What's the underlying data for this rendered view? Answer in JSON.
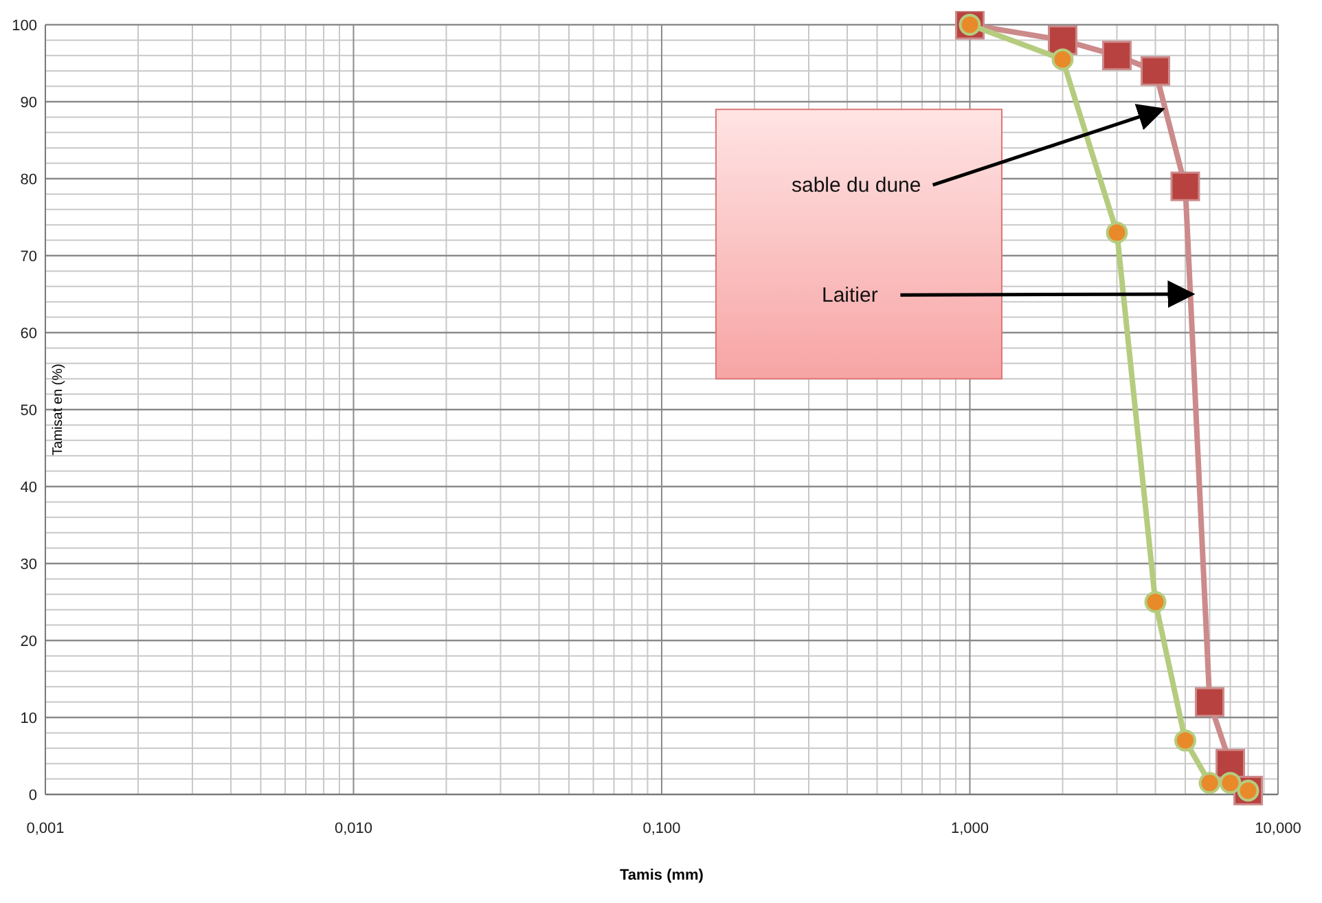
{
  "chart_data": {
    "type": "line",
    "xlabel": "Tamis (mm)",
    "ylabel": "Tamisat en (%)",
    "log": "x",
    "xlim": [
      0.001,
      10
    ],
    "xticks": [
      {
        "value": 0.001,
        "label": "0,001"
      },
      {
        "value": 0.01,
        "label": "0,010"
      },
      {
        "value": 0.1,
        "label": "0,100"
      },
      {
        "value": 1,
        "label": "1,000"
      },
      {
        "value": 10,
        "label": "10,000"
      }
    ],
    "ylim": [
      0,
      100
    ],
    "yticks": [
      0,
      10,
      20,
      30,
      40,
      50,
      60,
      70,
      80,
      90,
      100
    ],
    "grid": true,
    "line_style": "solid",
    "series": [
      {
        "color": "#cc8a8a",
        "marker": "square",
        "x": [
          1,
          2,
          3,
          4,
          5,
          6,
          7,
          8
        ],
        "values": [
          100,
          98,
          96,
          94,
          79,
          12,
          4,
          0.5
        ]
      },
      {
        "color": "#b5cc7f",
        "marker": "circle",
        "x": [
          1,
          2,
          3,
          4,
          5,
          6,
          7,
          8
        ],
        "values": [
          100,
          95.5,
          73,
          25,
          7,
          1.5,
          1.5,
          0.5
        ]
      }
    ],
    "annotations": [
      {
        "text": "sable du dune",
        "x": 4.2,
        "y": 89
      },
      {
        "text": "Laitier",
        "x": 5.25,
        "y": 65
      }
    ]
  }
}
